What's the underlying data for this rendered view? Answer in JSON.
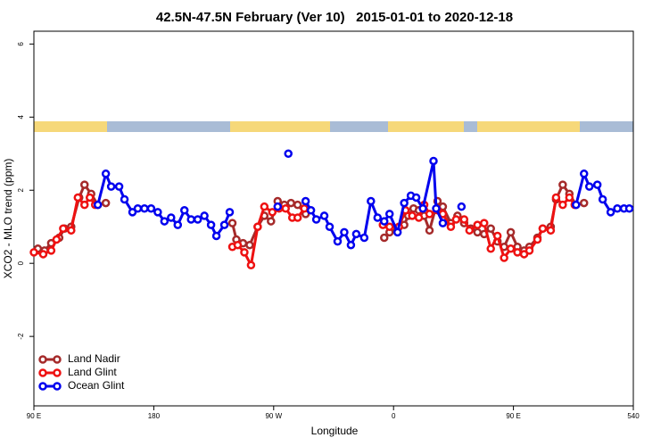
{
  "chart_data": {
    "type": "line",
    "title": "42.5N-47.5N February (Ver 10)   2015-01-01 to 2020-12-18",
    "x_label": "Longitude",
    "y_label": "XCO2 - MLO trend (ppm)",
    "xlim": [
      90,
      540
    ],
    "ylim": [
      -3.9,
      6.35
    ],
    "xticks": [
      {
        "value": 90,
        "label": "90 E"
      },
      180,
      {
        "value": 270,
        "label": "90 W"
      },
      {
        "value": 360,
        "label": "0"
      },
      {
        "value": 450,
        "label": "90 E"
      },
      540
    ],
    "yticks": [
      -2,
      0,
      2,
      4,
      6
    ],
    "legend": "bottom-left",
    "series": [
      {
        "name": "Land Nadir",
        "color": "#a52a2a",
        "x": [
          93,
          98,
          103,
          109,
          113,
          118,
          124,
          128,
          133,
          138,
          144,
          null,
          239,
          242,
          247,
          252,
          258,
          263,
          268,
          273,
          278,
          283,
          288,
          294,
          null,
          353,
          357,
          363,
          368,
          371,
          375,
          379,
          383,
          387,
          393,
          397,
          403,
          408,
          413,
          418,
          423,
          428,
          433,
          438,
          443,
          448,
          453,
          458,
          462,
          468,
          472,
          478,
          482,
          487,
          492,
          497,
          503
        ],
        "values": [
          0.4,
          0.35,
          0.55,
          0.7,
          0.95,
          1.0,
          1.8,
          2.15,
          1.9,
          1.6,
          1.65,
          null,
          1.1,
          0.65,
          0.55,
          0.5,
          1.0,
          1.3,
          1.15,
          1.7,
          1.6,
          1.65,
          1.6,
          1.35,
          null,
          0.7,
          0.85,
          0.95,
          1.05,
          1.3,
          1.5,
          1.45,
          1.3,
          0.9,
          1.7,
          1.55,
          1.1,
          1.3,
          1.1,
          0.95,
          0.85,
          0.8,
          0.95,
          0.6,
          0.45,
          0.85,
          0.45,
          0.35,
          0.45,
          0.7,
          0.95,
          1.0,
          1.75,
          2.15,
          1.9,
          1.6,
          1.65
        ]
      },
      {
        "name": "Land Glint",
        "color": "#ee1111",
        "x": [
          90,
          97,
          103,
          107,
          112,
          118,
          123,
          128,
          132,
          136,
          null,
          239,
          243,
          248,
          253,
          258,
          263,
          269,
          274,
          279,
          284,
          288,
          293,
          null,
          352,
          357,
          364,
          369,
          374,
          379,
          383,
          387,
          393,
          397,
          403,
          407,
          413,
          417,
          423,
          428,
          433,
          438,
          443,
          448,
          453,
          458,
          462,
          468,
          472,
          478,
          482,
          487,
          492,
          496
        ],
        "values": [
          0.3,
          0.25,
          0.35,
          0.65,
          0.95,
          0.9,
          1.8,
          1.6,
          1.8,
          1.6,
          null,
          0.45,
          0.5,
          0.3,
          -0.05,
          1.0,
          1.55,
          1.4,
          1.5,
          1.5,
          1.25,
          1.25,
          1.5,
          null,
          1.05,
          1.0,
          1.0,
          1.45,
          1.3,
          1.25,
          1.6,
          1.35,
          1.45,
          1.35,
          1.0,
          1.2,
          1.2,
          0.9,
          1.05,
          1.1,
          0.4,
          0.75,
          0.15,
          0.4,
          0.3,
          0.25,
          0.35,
          0.65,
          0.95,
          0.9,
          1.8,
          1.6,
          1.8,
          1.6
        ]
      },
      {
        "name": "Ocean Glint",
        "color": "#0000ee",
        "x": [
          138,
          144,
          148,
          154,
          158,
          164,
          168,
          173,
          178,
          183,
          188,
          193,
          198,
          203,
          208,
          213,
          218,
          223,
          227,
          233,
          237,
          null,
          273,
          null,
          281,
          null,
          294,
          298,
          302,
          308,
          312,
          318,
          323,
          328,
          332,
          338,
          343,
          348,
          353,
          357,
          363,
          368,
          373,
          377,
          382,
          390,
          392,
          397,
          null,
          411,
          null,
          497,
          503,
          507,
          513,
          517,
          523,
          528,
          533,
          537
        ],
        "values": [
          1.6,
          2.45,
          2.1,
          2.1,
          1.75,
          1.4,
          1.5,
          1.5,
          1.5,
          1.4,
          1.15,
          1.25,
          1.05,
          1.45,
          1.2,
          1.2,
          1.3,
          1.05,
          0.75,
          1.05,
          1.4,
          null,
          1.55,
          null,
          3.0,
          null,
          1.7,
          1.45,
          1.2,
          1.3,
          1.0,
          0.6,
          0.85,
          0.5,
          0.8,
          0.7,
          1.7,
          1.25,
          1.15,
          1.35,
          0.85,
          1.65,
          1.85,
          1.8,
          1.5,
          2.8,
          1.5,
          1.1,
          null,
          1.55,
          null,
          1.6,
          2.45,
          2.1,
          2.15,
          1.75,
          1.4,
          1.5,
          1.5,
          1.5
        ]
      }
    ]
  }
}
